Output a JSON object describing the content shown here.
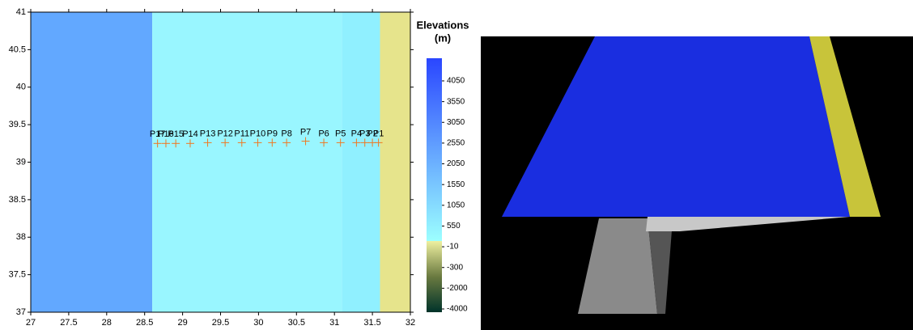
{
  "chart_data": {
    "type": "scatter",
    "xlim": [
      27,
      32
    ],
    "ylim": [
      37,
      41
    ],
    "xticks": [
      27,
      27.5,
      28,
      28.5,
      29,
      29.5,
      30,
      30.5,
      31,
      31.5,
      32
    ],
    "yticks": [
      37,
      37.5,
      38,
      38.5,
      39,
      39.5,
      40,
      40.5,
      41
    ],
    "marker_color": "#f07820",
    "regions": [
      {
        "x0": 27,
        "x1": 28.6,
        "color": "#62a8ff"
      },
      {
        "x0": 28.6,
        "x1": 31.1,
        "color": "#99f6ff"
      },
      {
        "x0": 31.1,
        "x1": 31.6,
        "color": "#90f0ff"
      },
      {
        "x0": 31.6,
        "x1": 32,
        "color": "#e6e48c"
      }
    ],
    "points": [
      {
        "label": "P1",
        "x": 31.58,
        "y": 39.26
      },
      {
        "label": "P2",
        "x": 31.5,
        "y": 39.26
      },
      {
        "label": "P3",
        "x": 31.4,
        "y": 39.26
      },
      {
        "label": "P4",
        "x": 31.29,
        "y": 39.26
      },
      {
        "label": "P5",
        "x": 31.08,
        "y": 39.26
      },
      {
        "label": "P6",
        "x": 30.86,
        "y": 39.26
      },
      {
        "label": "P7",
        "x": 30.62,
        "y": 39.28
      },
      {
        "label": "P8",
        "x": 30.37,
        "y": 39.26
      },
      {
        "label": "P9",
        "x": 30.18,
        "y": 39.26
      },
      {
        "label": "P10",
        "x": 29.99,
        "y": 39.26
      },
      {
        "label": "P11",
        "x": 29.78,
        "y": 39.26
      },
      {
        "label": "P12",
        "x": 29.56,
        "y": 39.26
      },
      {
        "label": "P13",
        "x": 29.33,
        "y": 39.26
      },
      {
        "label": "P14",
        "x": 29.1,
        "y": 39.25
      },
      {
        "label": "P15",
        "x": 28.91,
        "y": 39.25
      },
      {
        "label": "P16",
        "x": 28.78,
        "y": 39.25
      },
      {
        "label": "P17",
        "x": 28.67,
        "y": 39.25
      }
    ],
    "colorbar": {
      "title_lines": [
        "Elevations",
        "(m)"
      ],
      "ticks": [
        4050,
        3550,
        3050,
        2550,
        2050,
        1550,
        1050,
        550,
        -10,
        -300,
        -2000,
        -4000
      ],
      "upper_colors": [
        "#2a46ff",
        "#9cffff"
      ],
      "lower_colors": [
        "#eef0a0",
        "#6a7a40",
        "#00332a"
      ]
    }
  }
}
